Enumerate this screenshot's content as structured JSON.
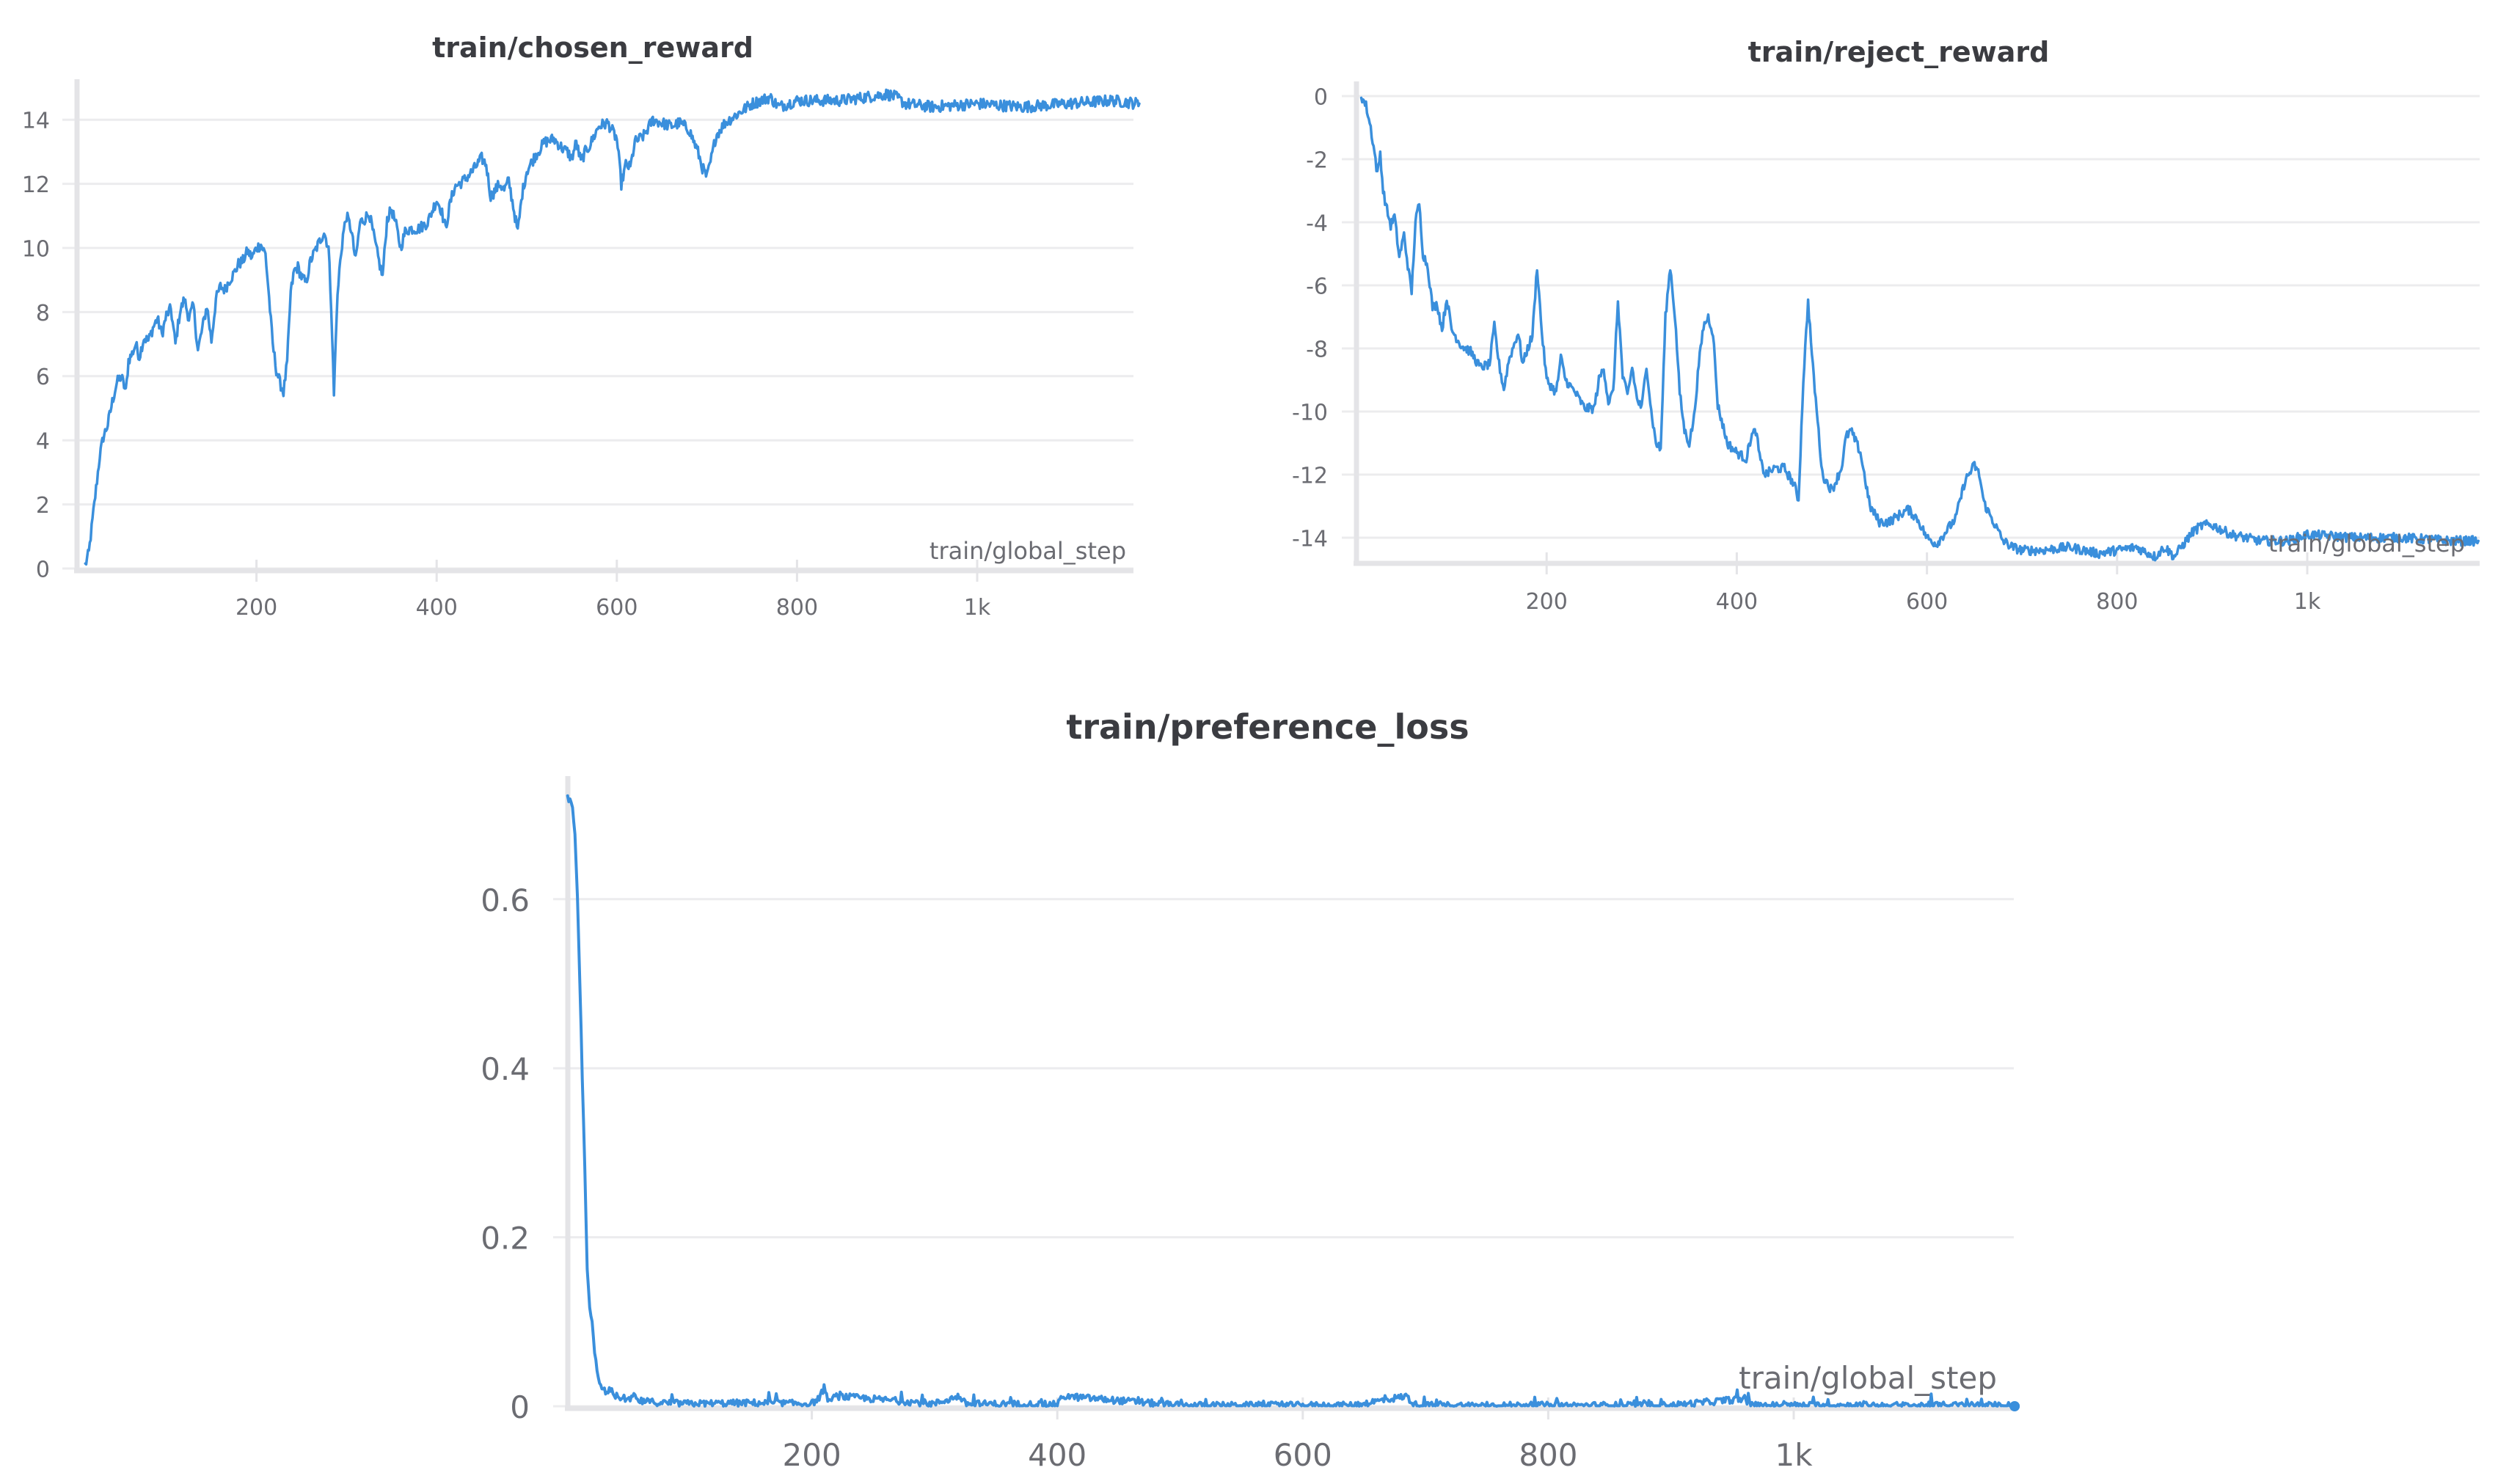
{
  "colors": {
    "series": "#3a8fdc",
    "grid": "#ececee",
    "axis": "#e4e4e7",
    "text": "#3b3c41",
    "tick_text": "#6b6c72"
  },
  "chart_data": [
    {
      "id": "chosen_reward",
      "type": "line",
      "title": "train/chosen_reward",
      "xlabel": "train/global_step",
      "ylabel": "",
      "xlim": [
        0,
        1180
      ],
      "ylim": [
        0,
        15
      ],
      "grid": true,
      "legend": "none",
      "x_ticks": [
        {
          "value": 200,
          "label": "200"
        },
        {
          "value": 400,
          "label": "400"
        },
        {
          "value": 600,
          "label": "600"
        },
        {
          "value": 800,
          "label": "800"
        },
        {
          "value": 1000,
          "label": "1k"
        }
      ],
      "y_ticks": [
        {
          "value": 0,
          "label": "0"
        },
        {
          "value": 2,
          "label": "2"
        },
        {
          "value": 4,
          "label": "4"
        },
        {
          "value": 6,
          "label": "6"
        },
        {
          "value": 8,
          "label": "8"
        },
        {
          "value": 10,
          "label": "10"
        },
        {
          "value": 12,
          "label": "12"
        },
        {
          "value": 14,
          "label": "14"
        }
      ],
      "series": [
        {
          "name": "train/chosen_reward",
          "noise": 0.18,
          "x": [
            10,
            14,
            18,
            22,
            26,
            30,
            35,
            40,
            45,
            50,
            55,
            58,
            62,
            66,
            70,
            75,
            80,
            85,
            90,
            95,
            100,
            105,
            110,
            115,
            120,
            125,
            130,
            135,
            140,
            145,
            150,
            155,
            160,
            165,
            170,
            175,
            180,
            185,
            190,
            195,
            200,
            205,
            210,
            213,
            218,
            222,
            226,
            230,
            234,
            238,
            242,
            246,
            250,
            255,
            260,
            265,
            270,
            275,
            280,
            283,
            286,
            289,
            292,
            296,
            300,
            305,
            310,
            315,
            320,
            325,
            330,
            335,
            340,
            345,
            350,
            355,
            360,
            365,
            370,
            380,
            390,
            400,
            405,
            410,
            415,
            420,
            430,
            440,
            450,
            455,
            460,
            465,
            470,
            475,
            480,
            485,
            490,
            495,
            500,
            510,
            520,
            530,
            540,
            545,
            550,
            555,
            560,
            565,
            570,
            580,
            590,
            600,
            605,
            610,
            615,
            620,
            630,
            640,
            650,
            660,
            670,
            680,
            690,
            695,
            700,
            705,
            710,
            720,
            730,
            740,
            750,
            760,
            770,
            780,
            790,
            800,
            850,
            900,
            910,
            920,
            950,
            1000,
            1050,
            1100,
            1150,
            1180
          ],
          "y": [
            0.1,
            0.5,
            1.5,
            2.5,
            3.5,
            4.1,
            4.5,
            5.2,
            5.8,
            6.0,
            5.5,
            6.5,
            6.7,
            7.0,
            6.6,
            7.2,
            7.1,
            7.5,
            7.8,
            7.3,
            7.9,
            8.1,
            7.0,
            8.0,
            8.4,
            7.8,
            8.2,
            6.8,
            7.5,
            8.2,
            7.1,
            8.4,
            8.8,
            8.7,
            9.0,
            9.2,
            9.5,
            9.6,
            9.9,
            9.7,
            10.0,
            10.1,
            9.8,
            8.8,
            7.0,
            6.2,
            5.8,
            5.5,
            6.4,
            8.6,
            9.3,
            9.4,
            9.1,
            8.9,
            9.6,
            9.9,
            10.2,
            10.5,
            10.0,
            8.2,
            5.4,
            8.0,
            9.3,
            10.4,
            11.0,
            10.6,
            9.6,
            10.8,
            10.9,
            11.1,
            10.4,
            9.7,
            9.1,
            10.9,
            11.2,
            10.7,
            10.0,
            10.5,
            10.6,
            10.6,
            10.8,
            11.5,
            11.2,
            10.6,
            11.4,
            11.9,
            12.1,
            12.4,
            12.8,
            12.6,
            11.6,
            11.8,
            12.0,
            11.8,
            12.1,
            11.3,
            10.5,
            11.7,
            12.4,
            12.9,
            13.3,
            13.4,
            13.1,
            13.0,
            12.8,
            13.3,
            12.7,
            13.0,
            13.2,
            13.8,
            13.9,
            13.4,
            12.0,
            12.6,
            12.5,
            13.3,
            13.5,
            14.0,
            13.9,
            13.8,
            13.9,
            13.7,
            13.0,
            12.5,
            12.2,
            12.8,
            13.5,
            13.9,
            14.1,
            14.3,
            14.5,
            14.6,
            14.7,
            14.4,
            14.5,
            14.6,
            14.6,
            14.8,
            14.7,
            14.5,
            14.4,
            14.5,
            14.4,
            14.5,
            14.6,
            14.5
          ]
        }
      ]
    },
    {
      "id": "reject_reward",
      "type": "line",
      "title": "train/reject_reward",
      "xlabel": "train/global_step",
      "ylabel": "",
      "xlim": [
        0,
        1180
      ],
      "ylim": [
        -14.7,
        0
      ],
      "grid": true,
      "legend": "none",
      "x_ticks": [
        {
          "value": 200,
          "label": "200"
        },
        {
          "value": 400,
          "label": "400"
        },
        {
          "value": 600,
          "label": "600"
        },
        {
          "value": 800,
          "label": "800"
        },
        {
          "value": 1000,
          "label": "1k"
        }
      ],
      "y_ticks": [
        {
          "value": 0,
          "label": "0"
        },
        {
          "value": -2,
          "label": "-2"
        },
        {
          "value": -4,
          "label": "-4"
        },
        {
          "value": -6,
          "label": "-6"
        },
        {
          "value": -8,
          "label": "-8"
        },
        {
          "value": -10,
          "label": "-10"
        },
        {
          "value": -12,
          "label": "-12"
        },
        {
          "value": -14,
          "label": "-14"
        }
      ],
      "series": [
        {
          "name": "train/reject_reward",
          "noise": 0.15,
          "x": [
            5,
            10,
            15,
            20,
            22,
            25,
            28,
            32,
            36,
            40,
            45,
            50,
            55,
            58,
            62,
            66,
            70,
            75,
            80,
            85,
            90,
            95,
            100,
            110,
            120,
            130,
            140,
            145,
            150,
            155,
            160,
            170,
            175,
            180,
            185,
            190,
            195,
            200,
            210,
            215,
            220,
            230,
            240,
            250,
            255,
            260,
            265,
            270,
            275,
            280,
            285,
            290,
            295,
            300,
            305,
            310,
            315,
            320,
            325,
            330,
            335,
            340,
            345,
            350,
            355,
            360,
            365,
            370,
            375,
            380,
            390,
            400,
            410,
            415,
            420,
            425,
            430,
            440,
            450,
            460,
            465,
            470,
            475,
            480,
            490,
            500,
            510,
            515,
            520,
            530,
            540,
            550,
            560,
            570,
            580,
            590,
            600,
            610,
            620,
            630,
            640,
            650,
            655,
            660,
            670,
            680,
            690,
            700,
            720,
            750,
            780,
            800,
            820,
            840,
            850,
            860,
            870,
            880,
            890,
            900,
            920,
            950,
            980,
            1000,
            1050,
            1100,
            1150,
            1180
          ],
          "y": [
            0,
            -0.3,
            -1.0,
            -2.0,
            -2.5,
            -1.8,
            -3.0,
            -3.6,
            -4.1,
            -3.8,
            -5.1,
            -4.4,
            -5.6,
            -6.2,
            -4.0,
            -3.4,
            -5.0,
            -5.4,
            -6.7,
            -6.6,
            -7.4,
            -6.4,
            -7.4,
            -7.9,
            -8.1,
            -8.6,
            -8.5,
            -7.3,
            -8.5,
            -9.3,
            -8.4,
            -7.5,
            -8.5,
            -8.0,
            -7.6,
            -5.4,
            -7.5,
            -9.0,
            -9.4,
            -8.3,
            -9.0,
            -9.4,
            -9.9,
            -9.9,
            -9.0,
            -8.6,
            -9.7,
            -9.4,
            -6.5,
            -8.9,
            -9.5,
            -8.6,
            -9.6,
            -9.9,
            -8.5,
            -10.0,
            -11.0,
            -11.2,
            -7.0,
            -5.4,
            -7.0,
            -9.4,
            -10.6,
            -11.0,
            -10.2,
            -8.5,
            -7.3,
            -7.0,
            -7.5,
            -9.8,
            -11.0,
            -11.3,
            -11.5,
            -10.8,
            -10.6,
            -11.6,
            -12.0,
            -11.8,
            -11.8,
            -12.3,
            -12.8,
            -9.0,
            -6.5,
            -8.6,
            -12.0,
            -12.5,
            -11.8,
            -10.8,
            -10.6,
            -11.3,
            -13.0,
            -13.5,
            -13.5,
            -13.3,
            -13.1,
            -13.4,
            -14.0,
            -14.2,
            -13.8,
            -13.4,
            -12.2,
            -11.7,
            -12.0,
            -12.9,
            -13.5,
            -14.1,
            -14.3,
            -14.4,
            -14.4,
            -14.3,
            -14.5,
            -14.4,
            -14.3,
            -14.6,
            -14.3,
            -14.6,
            -14.2,
            -13.8,
            -13.6,
            -13.6,
            -13.9,
            -14.1,
            -14.1,
            -13.9,
            -14.0,
            -14.0,
            -14.1,
            -14.1
          ]
        }
      ]
    },
    {
      "id": "preference_loss",
      "type": "line",
      "title": "train/preference_loss",
      "xlabel": "train/global_step",
      "ylabel": "",
      "xlim": [
        0,
        1180
      ],
      "ylim": [
        0,
        0.73
      ],
      "grid": true,
      "legend": "none",
      "x_ticks": [
        {
          "value": 200,
          "label": "200"
        },
        {
          "value": 400,
          "label": "400"
        },
        {
          "value": 600,
          "label": "600"
        },
        {
          "value": 800,
          "label": "800"
        },
        {
          "value": 1000,
          "label": "1k"
        }
      ],
      "y_ticks": [
        {
          "value": 0,
          "label": "0"
        },
        {
          "value": 0.2,
          "label": "0.2"
        },
        {
          "value": 0.4,
          "label": "0.4"
        },
        {
          "value": 0.6,
          "label": "0.6"
        }
      ],
      "series": [
        {
          "name": "train/preference_loss",
          "noise": 0.004,
          "x": [
            1,
            3,
            5,
            7,
            9,
            11,
            13,
            15,
            17,
            19,
            21,
            23,
            25,
            27,
            30,
            33,
            36,
            40,
            45,
            50,
            55,
            60,
            70,
            80,
            100,
            150,
            200,
            210,
            215,
            220,
            300,
            320,
            325,
            400,
            405,
            500,
            640,
            685,
            690,
            700,
            900,
            960,
            965,
            1000,
            1100,
            1180
          ],
          "y": [
            0.72,
            0.715,
            0.71,
            0.68,
            0.6,
            0.5,
            0.39,
            0.28,
            0.16,
            0.12,
            0.1,
            0.065,
            0.04,
            0.025,
            0.02,
            0.015,
            0.02,
            0.012,
            0.01,
            0.008,
            0.012,
            0.006,
            0.005,
            0.004,
            0.003,
            0.004,
            0.003,
            0.015,
            0.006,
            0.012,
            0.003,
            0.012,
            0.003,
            0.002,
            0.012,
            0.001,
            0.001,
            0.012,
            0.002,
            0.001,
            0.001,
            0.009,
            0.001,
            0.001,
            0.001,
            0.001
          ]
        }
      ]
    }
  ]
}
